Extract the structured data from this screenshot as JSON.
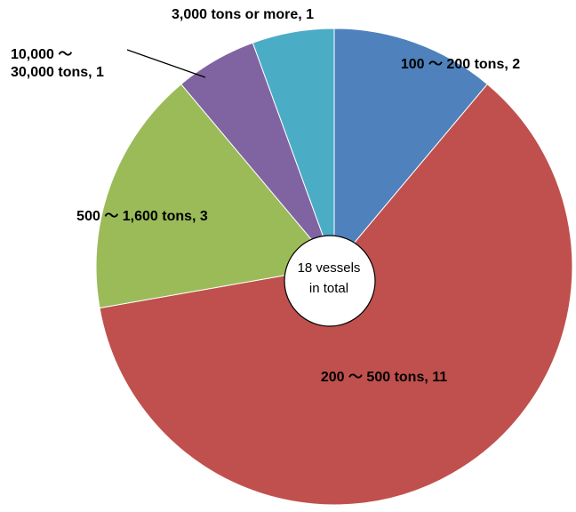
{
  "chart_data": {
    "type": "pie",
    "title": "",
    "categories": [
      "100 ～ 200 tons",
      "200 ～ 500 tons",
      "500 ～ 1,600 tons",
      "10,000 ～ 30,000 tons",
      "3,000 tons or more"
    ],
    "values": [
      2,
      11,
      3,
      1,
      1
    ],
    "colors": [
      "#4f81bd",
      "#c0504d",
      "#9bbb59",
      "#8064a2",
      "#4bacc6"
    ],
    "labels": [
      [
        "100 ～ 200 tons, 2"
      ],
      [
        "200 ～ 500 tons, 11"
      ],
      [
        "500 ～ 1,600 tons, 3"
      ],
      [
        "10,000 ～",
        "30,000 tons, 1"
      ],
      [
        "3,000 tons or more, 1"
      ]
    ],
    "center_label": [
      "18 vessels",
      "in total"
    ],
    "start": "12 o'clock",
    "direction": "clockwise",
    "legend": "none"
  }
}
